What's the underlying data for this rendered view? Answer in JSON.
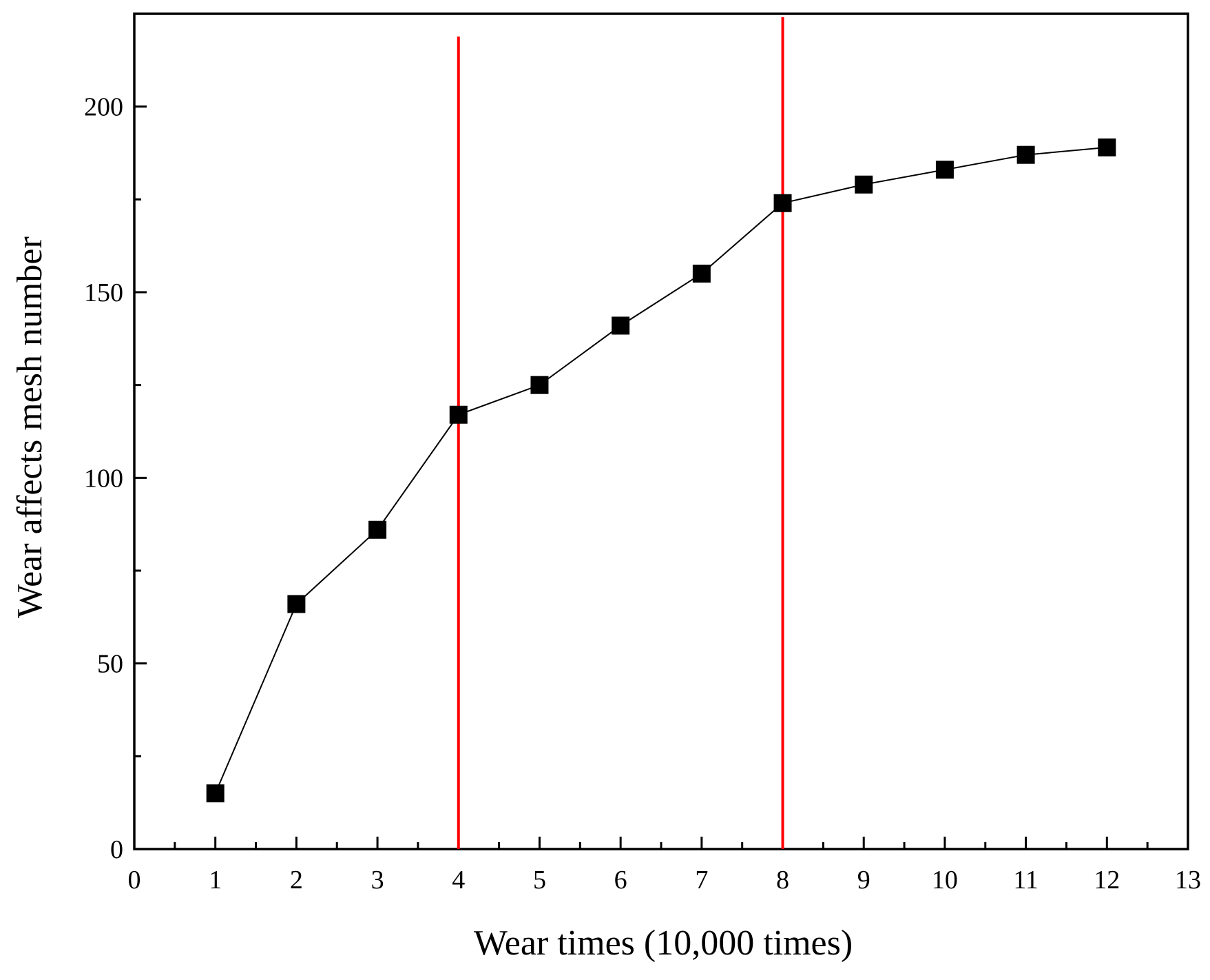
{
  "chart_data": {
    "type": "line",
    "xlabel": "Wear times (10,000 times)",
    "ylabel": "Wear affects mesh number",
    "xlim": [
      0,
      13
    ],
    "ylim": [
      0,
      225
    ],
    "x_ticks": [
      0,
      1,
      2,
      3,
      4,
      5,
      6,
      7,
      8,
      9,
      10,
      11,
      12,
      13
    ],
    "y_ticks": [
      0,
      50,
      100,
      150,
      200
    ],
    "y_minor_step": 25,
    "x_minor_step": 0.5,
    "grid": false,
    "legend": "none",
    "marker": "square",
    "series": [
      {
        "color": "#000000",
        "x": [
          1,
          2,
          3,
          4,
          5,
          6,
          7,
          8,
          9,
          10,
          11,
          12
        ],
        "y": [
          15,
          66,
          86,
          117,
          125,
          141,
          155,
          174,
          179,
          183,
          187,
          189
        ]
      }
    ],
    "reference_lines": [
      {
        "orientation": "vertical",
        "x": 4,
        "color": "#ff0000"
      },
      {
        "orientation": "vertical",
        "x": 8,
        "color": "#ff0000"
      }
    ]
  }
}
